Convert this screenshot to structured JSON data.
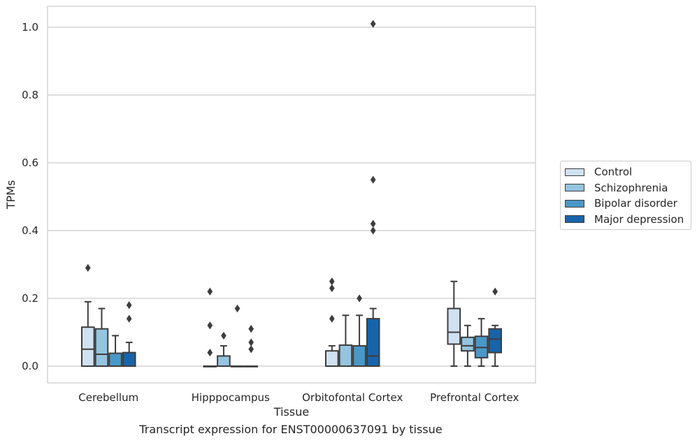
{
  "chart_data": {
    "type": "box",
    "xlabel": "Tissue",
    "ylabel": "TPMs",
    "caption": "Transcript expression for ENST00000637091 by tissue",
    "ylim": [
      -0.05,
      1.06
    ],
    "yticks": [
      0.0,
      0.2,
      0.4,
      0.6,
      0.8,
      1.0
    ],
    "ytick_labels": [
      "0.0",
      "0.2",
      "0.4",
      "0.6",
      "0.8",
      "1.0"
    ],
    "grid": "horizontal",
    "legend_position": "right",
    "categories": [
      "Cerebellum",
      "Hipppocampus",
      "Orbitofontal Cortex",
      "Prefrontal Cortex"
    ],
    "series": [
      {
        "name": "Control",
        "color": "#d0e1f2",
        "boxes": [
          {
            "min": 0.0,
            "q1": 0.0,
            "median": 0.05,
            "q3": 0.115,
            "max": 0.19,
            "outliers": [
              0.29
            ]
          },
          {
            "min": 0.0,
            "q1": 0.0,
            "median": 0.0,
            "q3": 0.0,
            "max": 0.0,
            "outliers": [
              0.04,
              0.12,
              0.22
            ]
          },
          {
            "min": 0.0,
            "q1": 0.0,
            "median": 0.0,
            "q3": 0.045,
            "max": 0.06,
            "outliers": [
              0.14,
              0.23,
              0.25
            ]
          },
          {
            "min": 0.0,
            "q1": 0.065,
            "median": 0.1,
            "q3": 0.17,
            "max": 0.25,
            "outliers": []
          }
        ]
      },
      {
        "name": "Schizophrenia",
        "color": "#94c4df",
        "boxes": [
          {
            "min": 0.0,
            "q1": 0.0,
            "median": 0.035,
            "q3": 0.11,
            "max": 0.17,
            "outliers": []
          },
          {
            "min": 0.0,
            "q1": 0.0,
            "median": 0.0,
            "q3": 0.03,
            "max": 0.06,
            "outliers": [
              0.09
            ]
          },
          {
            "min": 0.0,
            "q1": 0.0,
            "median": 0.0,
            "q3": 0.062,
            "max": 0.15,
            "outliers": []
          },
          {
            "min": 0.0,
            "q1": 0.045,
            "median": 0.06,
            "q3": 0.085,
            "max": 0.12,
            "outliers": []
          }
        ]
      },
      {
        "name": "Bipolar disorder",
        "color": "#4a98c9",
        "boxes": [
          {
            "min": 0.0,
            "q1": 0.0,
            "median": 0.0,
            "q3": 0.038,
            "max": 0.09,
            "outliers": []
          },
          {
            "min": 0.0,
            "q1": 0.0,
            "median": 0.0,
            "q3": 0.0,
            "max": 0.0,
            "outliers": [
              0.17
            ]
          },
          {
            "min": 0.0,
            "q1": 0.0,
            "median": 0.0,
            "q3": 0.06,
            "max": 0.15,
            "outliers": [
              0.2
            ]
          },
          {
            "min": 0.0,
            "q1": 0.025,
            "median": 0.055,
            "q3": 0.088,
            "max": 0.14,
            "outliers": []
          }
        ]
      },
      {
        "name": "Major depression",
        "color": "#1764ab",
        "boxes": [
          {
            "min": 0.0,
            "q1": 0.0,
            "median": 0.0,
            "q3": 0.04,
            "max": 0.07,
            "outliers": [
              0.14,
              0.18
            ]
          },
          {
            "min": 0.0,
            "q1": 0.0,
            "median": 0.0,
            "q3": 0.0,
            "max": 0.0,
            "outliers": [
              0.05,
              0.07,
              0.11
            ]
          },
          {
            "min": 0.0,
            "q1": 0.0,
            "median": 0.03,
            "q3": 0.14,
            "max": 0.17,
            "outliers": [
              0.4,
              0.42,
              0.55,
              1.01
            ]
          },
          {
            "min": 0.0,
            "q1": 0.04,
            "median": 0.08,
            "q3": 0.11,
            "max": 0.12,
            "outliers": [
              0.22
            ]
          }
        ]
      }
    ]
  }
}
